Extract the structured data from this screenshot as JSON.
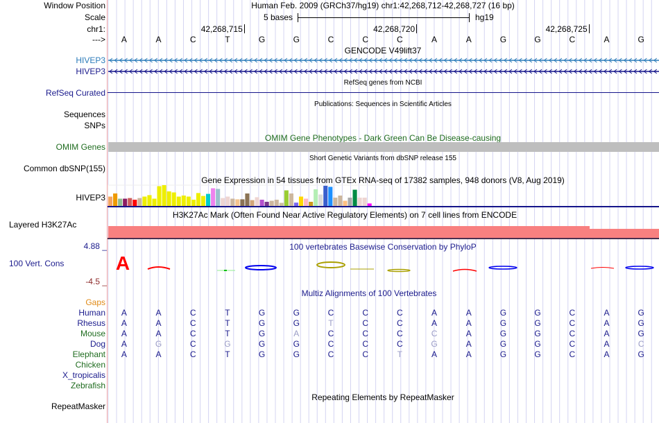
{
  "header": {
    "window_position_label": "Window Position",
    "window_position_text": "Human Feb. 2009 (GRCh37/hg19)   chr1:42,268,712-42,268,727 (16 bp)",
    "scale_label": "Scale",
    "scale_text": "5 bases",
    "scale_assembly": "hg19",
    "chrom_label": "chr1:",
    "strand_label": "--->",
    "coord_ticks": [
      "42,268,715",
      "42,268,720",
      "42,268,725"
    ],
    "bases": [
      "A",
      "A",
      "C",
      "T",
      "G",
      "G",
      "C",
      "C",
      "C",
      "A",
      "A",
      "G",
      "G",
      "C",
      "A",
      "G"
    ]
  },
  "tracks": {
    "gencode": {
      "title": "GENCODE V49lift37",
      "rows": [
        {
          "label": "HIVEP3",
          "color": "#2b7bb9",
          "strand": "minus"
        },
        {
          "label": "HIVEP3",
          "color": "#14148a",
          "strand": "minus"
        }
      ]
    },
    "refseq": {
      "label": "RefSeq Curated",
      "title": "RefSeq genes from NCBI",
      "color": "#14148a"
    },
    "publications": {
      "title": "Publications: Sequences in Scientific Articles",
      "labels": [
        "Sequences",
        "SNPs"
      ]
    },
    "omim": {
      "label": "OMIM Genes",
      "title": "OMIM Gene Phenotypes - Dark Green Can Be Disease-causing",
      "bar_color": "#bebebe"
    },
    "dbsnp": {
      "label": "Common dbSNP(155)",
      "title": "Short Genetic Variants from dbSNP release 155"
    },
    "gtex": {
      "label": "HIVEP3",
      "title": "Gene Expression in 54 tissues from GTEx RNA-seq of 17382 samples, 948 donors (V8, Aug 2019)",
      "bars": [
        {
          "v": 0.45,
          "c": "#f4a460"
        },
        {
          "v": 0.6,
          "c": "#ee9a00"
        },
        {
          "v": 0.35,
          "c": "#8fbc8f"
        },
        {
          "v": 0.35,
          "c": "#8b1c62"
        },
        {
          "v": 0.38,
          "c": "#cd5c5c"
        },
        {
          "v": 0.3,
          "c": "#ff0000"
        },
        {
          "v": 0.38,
          "c": "#cdb79e"
        },
        {
          "v": 0.45,
          "c": "#eeee00"
        },
        {
          "v": 0.52,
          "c": "#eeee00"
        },
        {
          "v": 0.35,
          "c": "#eeee00"
        },
        {
          "v": 0.95,
          "c": "#eeee00"
        },
        {
          "v": 1.0,
          "c": "#eeee00"
        },
        {
          "v": 0.7,
          "c": "#eeee00"
        },
        {
          "v": 0.65,
          "c": "#eeee00"
        },
        {
          "v": 0.45,
          "c": "#eeee00"
        },
        {
          "v": 0.5,
          "c": "#eeee00"
        },
        {
          "v": 0.45,
          "c": "#eeee00"
        },
        {
          "v": 0.3,
          "c": "#eeee00"
        },
        {
          "v": 0.62,
          "c": "#eeee00"
        },
        {
          "v": 0.48,
          "c": "#eeee00"
        },
        {
          "v": 0.58,
          "c": "#00cdcd"
        },
        {
          "v": 0.85,
          "c": "#ee82ee"
        },
        {
          "v": 0.82,
          "c": "#9ac0cd"
        },
        {
          "v": 0.38,
          "c": "#eed5d2"
        },
        {
          "v": 0.45,
          "c": "#eed5d2"
        },
        {
          "v": 0.35,
          "c": "#cdb79e"
        },
        {
          "v": 0.32,
          "c": "#f4c48f"
        },
        {
          "v": 0.32,
          "c": "#8b7355"
        },
        {
          "v": 0.6,
          "c": "#8b7355"
        },
        {
          "v": 0.28,
          "c": "#d2a679"
        },
        {
          "v": 0.42,
          "c": "#eed5d2"
        },
        {
          "v": 0.3,
          "c": "#b452cd"
        },
        {
          "v": 0.2,
          "c": "#7a378b"
        },
        {
          "v": 0.25,
          "c": "#cdb79e"
        },
        {
          "v": 0.3,
          "c": "#cdb79e"
        },
        {
          "v": 0.15,
          "c": "#cdc1a0"
        },
        {
          "v": 0.75,
          "c": "#9acd32"
        },
        {
          "v": 0.6,
          "c": "#cdb79e"
        },
        {
          "v": 0.16,
          "c": "#7b68ee"
        },
        {
          "v": 0.45,
          "c": "#ffd700"
        },
        {
          "v": 0.35,
          "c": "#ffb6c1"
        },
        {
          "v": 0.2,
          "c": "#cd9b1d"
        },
        {
          "v": 0.8,
          "c": "#b4eeb4"
        },
        {
          "v": 0.55,
          "c": "#d9d9d9"
        },
        {
          "v": 0.97,
          "c": "#3a5fcd"
        },
        {
          "v": 0.92,
          "c": "#1e90ff"
        },
        {
          "v": 0.4,
          "c": "#cdb79e"
        },
        {
          "v": 0.5,
          "c": "#cdb79e"
        },
        {
          "v": 0.25,
          "c": "#ffc182"
        },
        {
          "v": 0.4,
          "c": "#a9a9a9"
        },
        {
          "v": 0.78,
          "c": "#008b45"
        },
        {
          "v": 0.4,
          "c": "#eed5d2"
        },
        {
          "v": 0.4,
          "c": "#eed5d2"
        },
        {
          "v": 0.12,
          "c": "#ff00ff"
        }
      ]
    },
    "h3k27ac": {
      "label": "Layered H3K27Ac",
      "title": "H3K27Ac Mark (Often Found Near Active Regulatory Elements) on 7 cell lines from ENCODE",
      "color": "#f88080"
    },
    "phylop": {
      "label": "100 Vert. Cons",
      "title": "100 vertebrates Basewise Conservation by PhyloP",
      "max_label": "4.88 _",
      "min_label": "-4.5 _"
    },
    "multiz": {
      "title": "Multiz Alignments of 100 Vertebrates",
      "gaps_label": "Gaps",
      "species": [
        {
          "name": "Human",
          "color": "blue",
          "seq": "AACTGGCCCAAGGCAG",
          "diff": ""
        },
        {
          "name": "Rhesus",
          "color": "blue",
          "seq": "AACTGGTCCAAGGCAG",
          "diff": "0000001000000000"
        },
        {
          "name": "Mouse",
          "color": "green",
          "seq": "AACTGACCCCAGGCAG",
          "diff": "0000010001000000"
        },
        {
          "name": "Dog",
          "color": "blue",
          "seq": "AGCGGGCCCGAGGCAC",
          "diff": "0101000001000001"
        },
        {
          "name": "Elephant",
          "color": "green",
          "seq": "AACTGGCCTAAGGCAG",
          "diff": "0000000010000000"
        },
        {
          "name": "Chicken",
          "color": "green",
          "seq": "",
          "diff": ""
        },
        {
          "name": "X_tropicalis",
          "color": "blue",
          "seq": "",
          "diff": ""
        },
        {
          "name": "Zebrafish",
          "color": "green",
          "seq": "",
          "diff": ""
        }
      ]
    },
    "repeatmasker": {
      "label": "RepeatMasker",
      "title": "Repeating Elements by RepeatMasker"
    }
  }
}
